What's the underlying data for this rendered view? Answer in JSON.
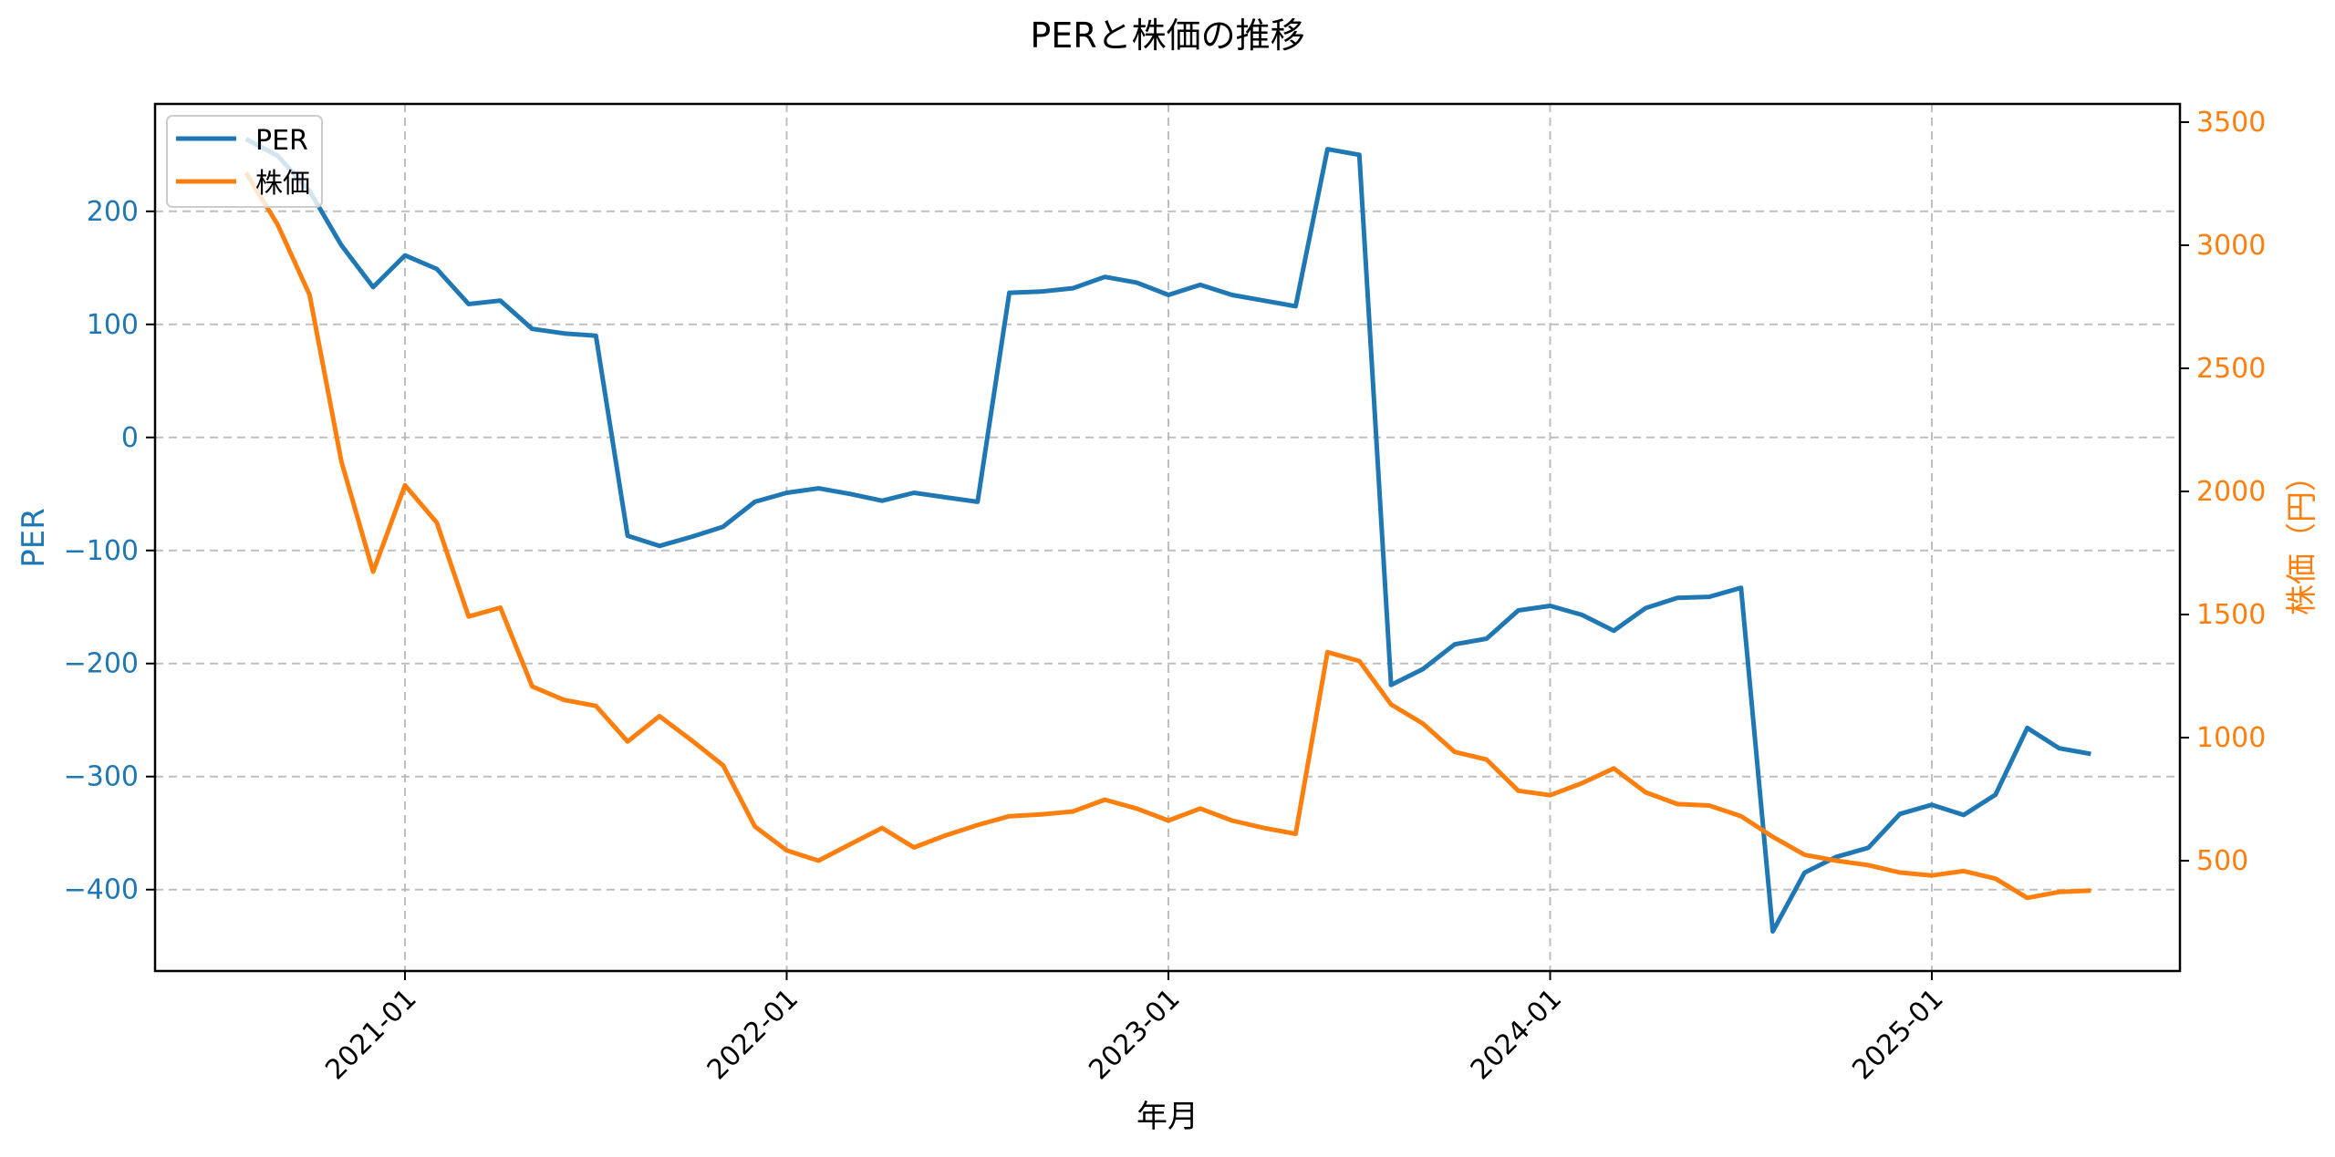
{
  "title": "PERと株価の推移",
  "colors": {
    "per": "#1f77b4",
    "price": "#ff7f0e",
    "grid": "#b0b0b0",
    "axis": "#000000"
  },
  "legend": {
    "position": "upper left",
    "items": [
      {
        "label": "PER",
        "color": "#1f77b4"
      },
      {
        "label": "株価",
        "color": "#ff7f0e"
      }
    ]
  },
  "axes": {
    "xlabel": "年月",
    "ylabel_left": "PER",
    "ylabel_right": "株価（円）",
    "x_ticks": [
      "2021-01",
      "2022-01",
      "2023-01",
      "2024-01",
      "2025-01"
    ],
    "y_left_ticks": [
      "200",
      "100",
      "0",
      "−100",
      "−200",
      "−300",
      "−400"
    ],
    "y_right_ticks": [
      "3500",
      "3000",
      "2500",
      "2000",
      "1500",
      "1000",
      "500"
    ]
  },
  "chart_data": {
    "type": "line",
    "title": "PERと株価の推移",
    "xlabel": "年月",
    "ylabel": "PER",
    "ylabel_secondary": "株価（円）",
    "grid": true,
    "legend_position": "upper left",
    "ylim": [
      -472,
      295
    ],
    "ylim_secondary": [
      52,
      3574
    ],
    "x_tick_labels": [
      "2021-01",
      "2022-01",
      "2023-01",
      "2024-01",
      "2025-01"
    ],
    "x": [
      "2020-08",
      "2020-09",
      "2020-10",
      "2020-11",
      "2020-12",
      "2021-01",
      "2021-02",
      "2021-03",
      "2021-04",
      "2021-05",
      "2021-06",
      "2021-07",
      "2021-08",
      "2021-09",
      "2021-10",
      "2021-11",
      "2021-12",
      "2022-01",
      "2022-02",
      "2022-03",
      "2022-04",
      "2022-05",
      "2022-06",
      "2022-07",
      "2022-08",
      "2022-09",
      "2022-10",
      "2022-11",
      "2022-12",
      "2023-01",
      "2023-02",
      "2023-03",
      "2023-04",
      "2023-05",
      "2023-06",
      "2023-07",
      "2023-08",
      "2023-09",
      "2023-10",
      "2023-11",
      "2023-12",
      "2024-01",
      "2024-02",
      "2024-03",
      "2024-04",
      "2024-05",
      "2024-06",
      "2024-07",
      "2024-08",
      "2024-09",
      "2024-10",
      "2024-11",
      "2024-12",
      "2025-01",
      "2025-02",
      "2025-03",
      "2025-04",
      "2025-05",
      "2025-06"
    ],
    "series": [
      {
        "name": "PER",
        "axis": "left",
        "color": "#1f77b4",
        "values": [
          264,
          249,
          218,
          170,
          133,
          161,
          149,
          118,
          121,
          96,
          92,
          90,
          -87,
          -96,
          -88,
          -79,
          -57,
          -49,
          -45,
          -50,
          -56,
          -49,
          -53,
          -57,
          128,
          129,
          132,
          142,
          137,
          126,
          135,
          126,
          121,
          116,
          255,
          250,
          -219,
          -205,
          -183,
          -178,
          -153,
          -149,
          -157,
          -171,
          -151,
          -142,
          -141,
          -133,
          -437,
          -385,
          -371,
          -363,
          -333,
          -325,
          -334,
          -316,
          -257,
          -275,
          -280
        ]
      },
      {
        "name": "株価",
        "axis": "right",
        "color": "#ff7f0e",
        "values": [
          3295,
          3083,
          2799,
          2121,
          1674,
          2025,
          1873,
          1492,
          1528,
          1208,
          1153,
          1129,
          984,
          1087,
          990,
          887,
          639,
          542,
          500,
          567,
          633,
          554,
          603,
          645,
          681,
          688,
          700,
          748,
          712,
          663,
          712,
          663,
          633,
          609,
          1347,
          1311,
          1135,
          1057,
          942,
          911,
          784,
          766,
          815,
          875,
          778,
          730,
          724,
          681,
          597,
          524,
          500,
          482,
          452,
          440,
          458,
          427,
          349,
          373,
          379
        ]
      }
    ]
  }
}
